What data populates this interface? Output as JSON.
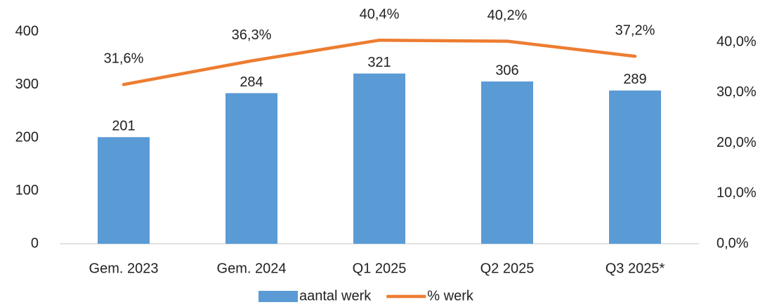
{
  "chart_data": {
    "type": "bar",
    "categories": [
      "Gem. 2023",
      "Gem. 2024",
      "Q1 2025",
      "Q2 2025",
      "Q3 2025*"
    ],
    "series": [
      {
        "name": "aantal werk",
        "type": "bar",
        "color": "#5b9bd5",
        "values": [
          201,
          284,
          321,
          306,
          289
        ]
      },
      {
        "name": "% werk",
        "type": "line",
        "axis": "y2",
        "color": "#ed7d31",
        "values": [
          31.6,
          36.3,
          40.4,
          40.2,
          37.2
        ],
        "value_labels": [
          "31,6%",
          "36,3%",
          "40,4%",
          "40,2%",
          "37,2%"
        ]
      }
    ],
    "ylim": [
      0,
      400
    ],
    "yticks": [
      0,
      100,
      200,
      300,
      400
    ],
    "y2lim": [
      0,
      42.1
    ],
    "y2ticks": [
      {
        "value": 0,
        "label": "0,0%"
      },
      {
        "value": 10,
        "label": "10,0%"
      },
      {
        "value": 20,
        "label": "20,0%"
      },
      {
        "value": 30,
        "label": "30,0%"
      },
      {
        "value": 40,
        "label": "40,0%"
      }
    ],
    "grid": false,
    "legend": "bottom"
  }
}
